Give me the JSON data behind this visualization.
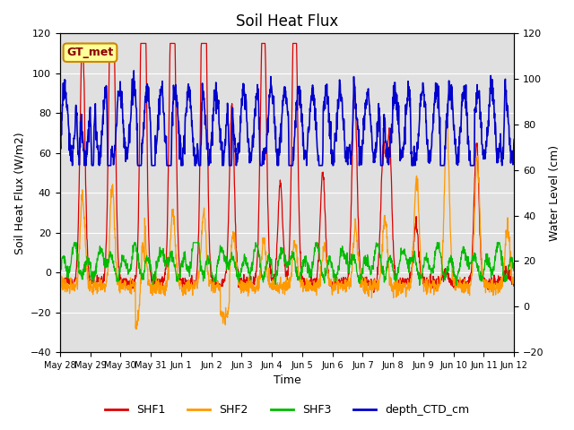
{
  "title": "Soil Heat Flux",
  "xlabel": "Time",
  "ylabel_left": "Soil Heat Flux (W/m2)",
  "ylabel_right": "Water Level (cm)",
  "ylim_left": [
    -40,
    120
  ],
  "ylim_right": [
    -20,
    120
  ],
  "yticks_left": [
    -40,
    -20,
    0,
    20,
    40,
    60,
    80,
    100,
    120
  ],
  "yticks_right": [
    -20,
    0,
    20,
    40,
    60,
    80,
    100,
    120
  ],
  "background_color": "#e0e0e0",
  "fig_background": "#ffffff",
  "line_colors": {
    "SHF1": "#dd0000",
    "SHF2": "#ff9900",
    "SHF3": "#00bb00",
    "depth_CTD_cm": "#0000cc"
  },
  "annotation_text": "GT_met",
  "annotation_box_color": "#ffff99",
  "annotation_box_edge": "#cc8800",
  "xtick_labels": [
    "May 28",
    "May 29",
    "May 30",
    "May 31",
    "Jun 1",
    "Jun 2",
    "Jun 3",
    "Jun 4",
    "Jun 5",
    "Jun 6",
    "Jun 7",
    "Jun 8",
    "Jun 9",
    "Jun 10",
    "Jun 11",
    "Jun 12"
  ],
  "legend_entries": [
    "SHF1",
    "SHF2",
    "SHF3",
    "depth_CTD_cm"
  ],
  "title_fontsize": 12,
  "axis_label_fontsize": 9,
  "tick_fontsize": 8,
  "legend_fontsize": 9
}
